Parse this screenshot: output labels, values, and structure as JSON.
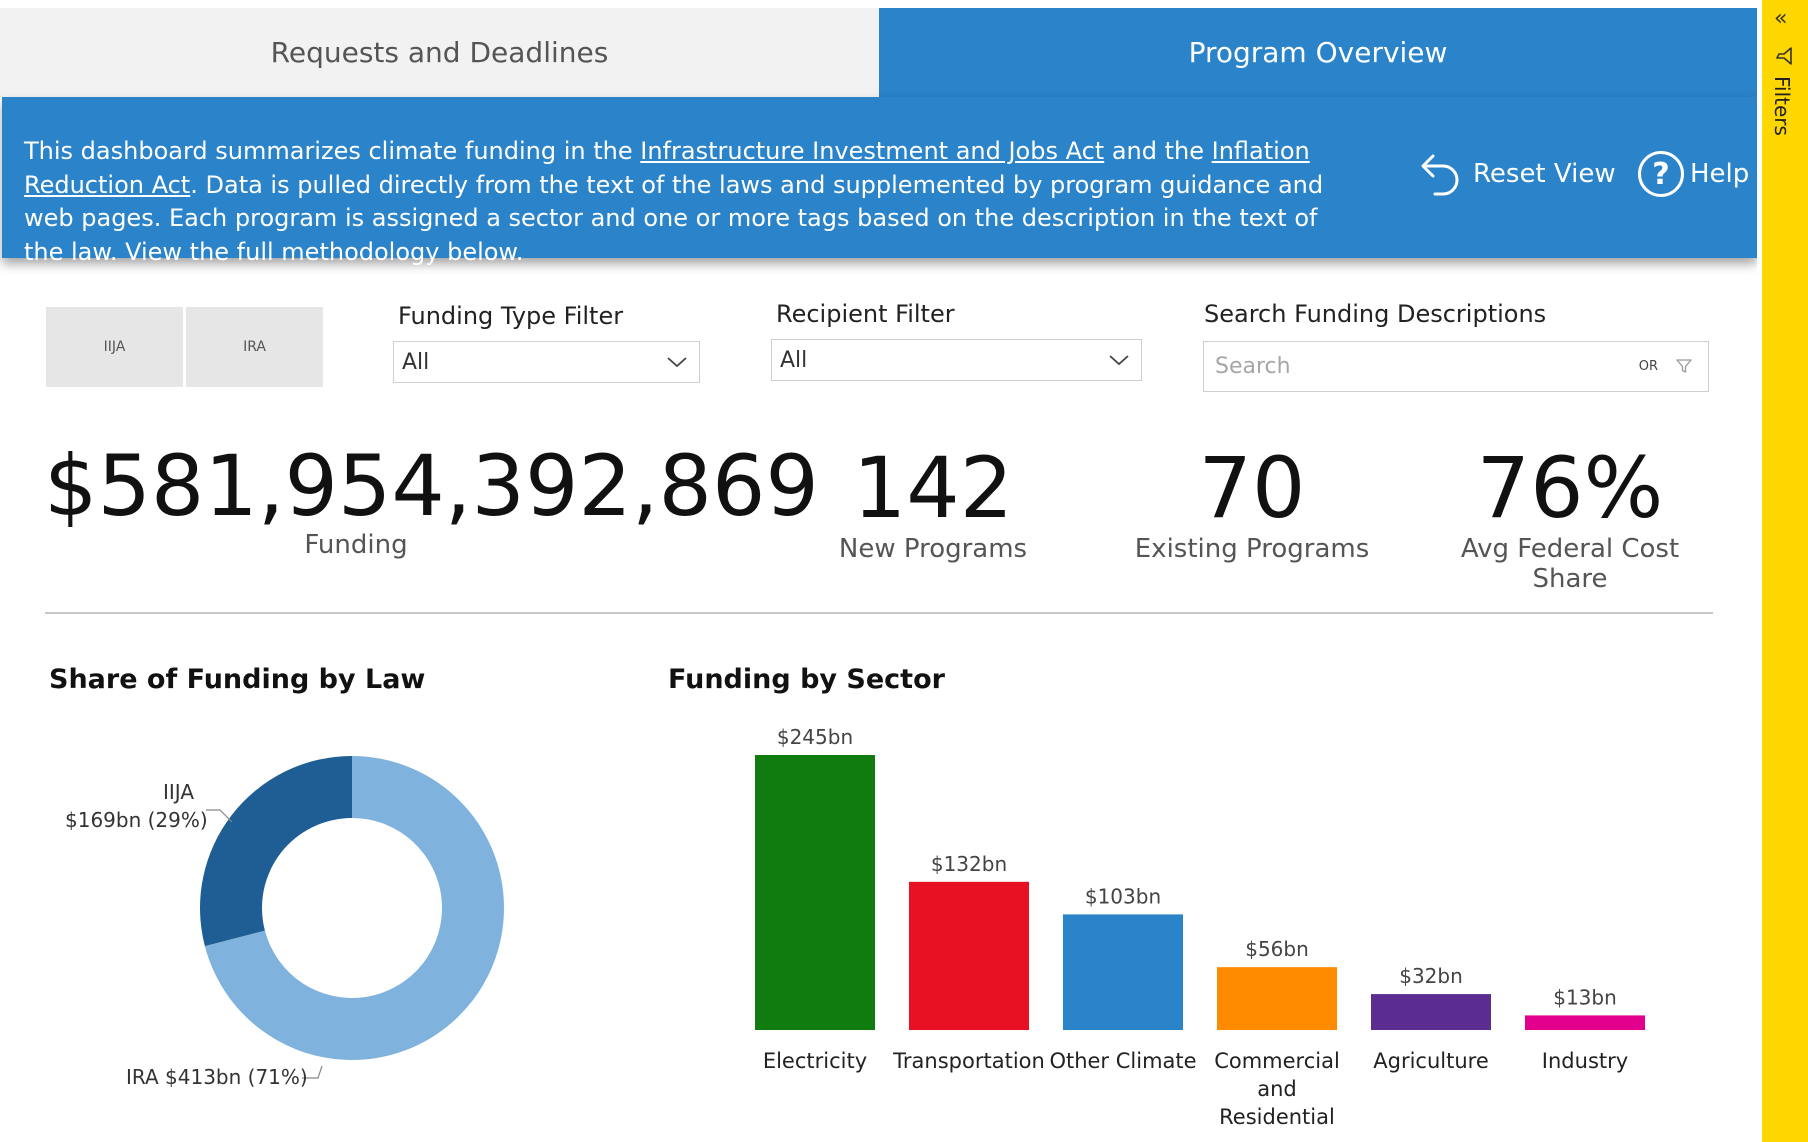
{
  "tabs": {
    "requests": "Requests and Deadlines",
    "overview": "Program Overview"
  },
  "banner": {
    "part1": "This dashboard summarizes climate funding in the ",
    "link1": "Infrastructure Investment and Jobs Act",
    "part2": " and the ",
    "link2": "Inflation Reduction Act",
    "part3": ".",
    "part4": "Data is pulled directly from the text of the laws and supplemented by program guidance and web pages. Each program is assigned a sector and one or more tags based on the description in the text of the law. View the full methodology below.",
    "reset_label": "Reset View",
    "help_label": "Help",
    "help_glyph": "?"
  },
  "filters_pane": {
    "label": "Filters",
    "collapse_glyph": "«"
  },
  "slicers": {
    "ija": "IIJA",
    "ira": "IRA",
    "funding_type_label": "Funding Type Filter",
    "funding_type_value": "All",
    "recipient_label": "Recipient Filter",
    "recipient_value": "All",
    "search_label": "Search Funding Descriptions",
    "search_placeholder": "Search",
    "search_or": "OR"
  },
  "kpis": {
    "funding_value": "$581,954,392,869",
    "funding_label": "Funding",
    "new_value": "142",
    "new_label": "New Programs",
    "existing_value": "70",
    "existing_label": "Existing Programs",
    "cost_value": "76%",
    "cost_label": "Avg Federal Cost Share"
  },
  "colors": {
    "accent": "#2b83c9",
    "filter_pane": "#ffd700",
    "donut_ija": "#1f5e94",
    "donut_ira": "#7fb3de"
  },
  "chart_data": [
    {
      "type": "pie",
      "title": "Share of Funding by Law",
      "categories": [
        "IIJA",
        "IRA"
      ],
      "values": [
        169,
        413
      ],
      "percent": [
        29,
        71
      ],
      "labels": [
        "$169bn (29%)",
        "IRA $413bn (71%)"
      ],
      "colors": [
        "#1f5e94",
        "#7fb3de"
      ],
      "donut": true
    },
    {
      "type": "bar",
      "title": "Funding by Sector",
      "categories": [
        "Electricity",
        "Transportation",
        "Other Climate",
        "Commercial and Residential",
        "Agriculture",
        "Industry"
      ],
      "category_lines": [
        [
          "Electricity"
        ],
        [
          "Transportation"
        ],
        [
          "Other Climate"
        ],
        [
          "Commercial",
          "and",
          "Residential"
        ],
        [
          "Agriculture"
        ],
        [
          "Industry"
        ]
      ],
      "values": [
        245,
        132,
        103,
        56,
        32,
        13
      ],
      "data_labels": [
        "$245bn",
        "$132bn",
        "$103bn",
        "$56bn",
        "$32bn",
        "$13bn"
      ],
      "colors": [
        "#107c10",
        "#e81123",
        "#2b83c9",
        "#ff8c00",
        "#5c2d91",
        "#e3008c"
      ],
      "unit": "bn",
      "ylim": [
        0,
        245
      ],
      "grid": false
    }
  ]
}
